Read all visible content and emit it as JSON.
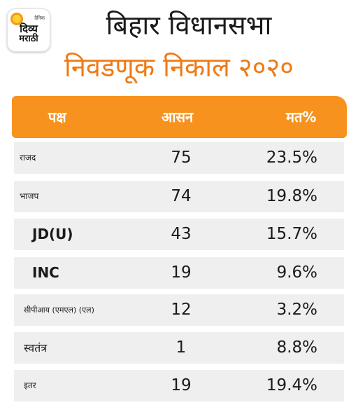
{
  "logo": {
    "small": "दैनिक",
    "line1": "दिव्य",
    "line2": "मराठी"
  },
  "title": "बिहार विधानसभा",
  "subtitle": "निवडणूक निकाल २०२०",
  "table": {
    "headers": {
      "party": "पक्ष",
      "seats": "आसन",
      "vote": "मत%"
    },
    "rows": [
      {
        "party": "राजद",
        "seats": "75",
        "vote": "23.5%"
      },
      {
        "party": "भाजप",
        "seats": "74",
        "vote": "19.8%"
      },
      {
        "party": "JD(U)",
        "seats": "43",
        "vote": "15.7%"
      },
      {
        "party": "INC",
        "seats": "19",
        "vote": "9.6%"
      },
      {
        "party": "सीपीआय (एमएल) (एल)",
        "seats": "12",
        "vote": "3.2%"
      },
      {
        "party": "स्वतंत्र",
        "seats": "1",
        "vote": "8.8%"
      },
      {
        "party": "इतर",
        "seats": "19",
        "vote": "19.4%"
      }
    ]
  },
  "colors": {
    "accent": "#f7921e",
    "subtitle": "#f07a14",
    "row_bg": "#efefef"
  }
}
